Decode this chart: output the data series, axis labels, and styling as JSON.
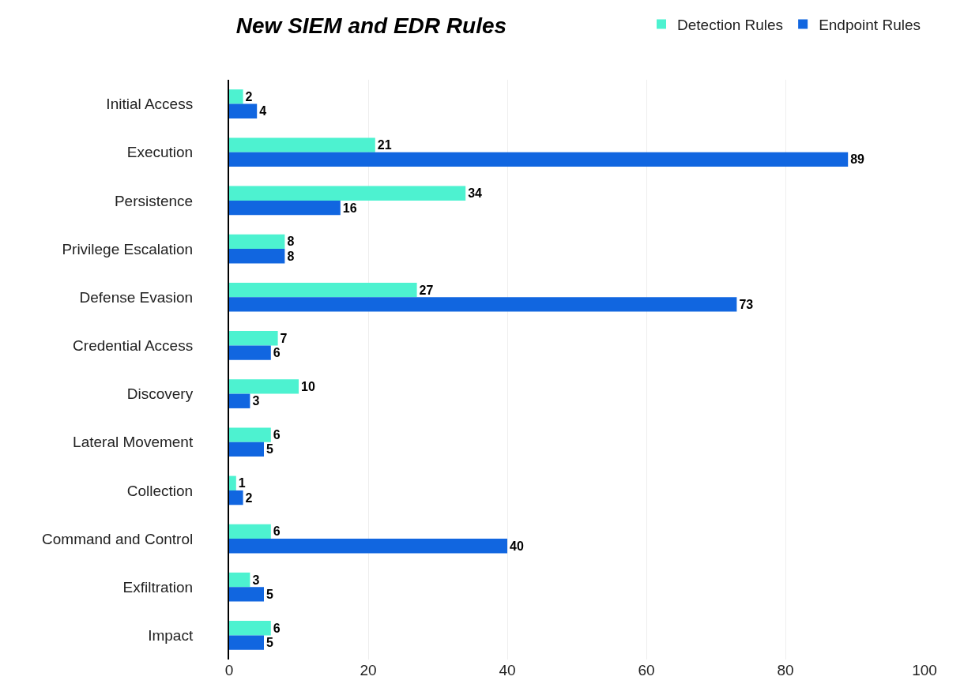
{
  "chart_data": {
    "type": "bar",
    "orientation": "horizontal",
    "title": "New SIEM and EDR Rules",
    "categories": [
      "Initial Access",
      "Execution",
      "Persistence",
      "Privilege Escalation",
      "Defense Evasion",
      "Credential Access",
      "Discovery",
      "Lateral Movement",
      "Collection",
      "Command and Control",
      "Exfiltration",
      "Impact"
    ],
    "series": [
      {
        "name": "Detection Rules",
        "color": "#4df2d0",
        "values": [
          2,
          21,
          34,
          8,
          27,
          7,
          10,
          6,
          1,
          6,
          3,
          6
        ]
      },
      {
        "name": "Endpoint Rules",
        "color": "#1166e0",
        "values": [
          4,
          89,
          16,
          8,
          73,
          6,
          3,
          5,
          2,
          40,
          5,
          5
        ]
      }
    ],
    "xlim": [
      0,
      100
    ],
    "xticks": [
      0,
      20,
      40,
      60,
      80,
      100
    ],
    "grid": "x",
    "legend": "top right",
    "data_labels": true
  }
}
